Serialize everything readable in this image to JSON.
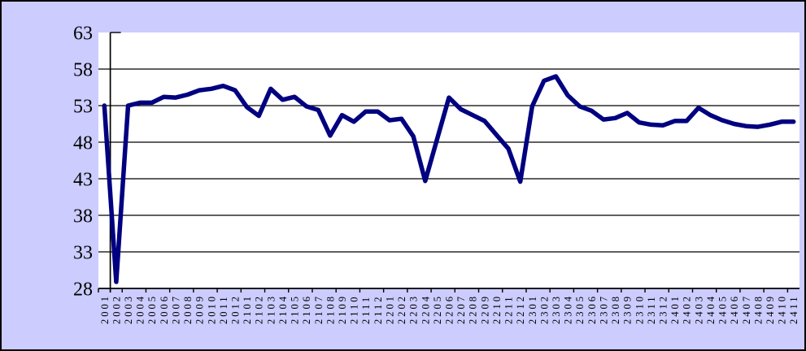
{
  "chart_data": {
    "type": "line",
    "title": "",
    "xlabel": "",
    "ylabel": "",
    "legend": "none",
    "grid": "horizontal",
    "ylim": [
      28,
      63
    ],
    "y_ticks": [
      28,
      33,
      38,
      43,
      48,
      53,
      58,
      63
    ],
    "categories": [
      "2001",
      "2002",
      "2003",
      "2004",
      "2005",
      "2006",
      "2007",
      "2008",
      "2009",
      "2010",
      "2011",
      "2012",
      "2101",
      "2102",
      "2103",
      "2104",
      "2105",
      "2106",
      "2107",
      "2108",
      "2109",
      "2110",
      "2111",
      "2112",
      "2201",
      "2202",
      "2203",
      "2204",
      "2205",
      "2206",
      "2207",
      "2208",
      "2209",
      "2210",
      "2211",
      "2212",
      "2301",
      "2302",
      "2303",
      "2304",
      "2305",
      "2306",
      "2307",
      "2308",
      "2309",
      "2310",
      "2311",
      "2312",
      "2401",
      "2402",
      "2403",
      "2404",
      "2405",
      "2406",
      "2407",
      "2408",
      "2409",
      "2410",
      "2411"
    ],
    "values": [
      53.0,
      28.9,
      53.0,
      53.4,
      53.4,
      54.2,
      54.1,
      54.5,
      55.1,
      55.3,
      55.7,
      55.1,
      52.8,
      51.6,
      55.3,
      53.8,
      54.2,
      52.9,
      52.4,
      48.9,
      51.7,
      50.8,
      52.2,
      52.2,
      51.0,
      51.2,
      48.8,
      42.7,
      48.4,
      54.1,
      52.5,
      51.7,
      50.9,
      49.0,
      47.1,
      42.6,
      52.9,
      56.4,
      57.0,
      54.4,
      52.9,
      52.3,
      51.1,
      51.3,
      52.0,
      50.7,
      50.4,
      50.3,
      50.9,
      50.9,
      52.7,
      51.7,
      51.0,
      50.5,
      50.2,
      50.1,
      50.4,
      50.8,
      50.8
    ],
    "colors": {
      "line": "#000080",
      "chart_background": "#CCCCFF",
      "plot_background": "#FFFFFF",
      "gridline": "#000000",
      "axis": "#000000",
      "border": "#000000",
      "text": "#000000"
    }
  }
}
